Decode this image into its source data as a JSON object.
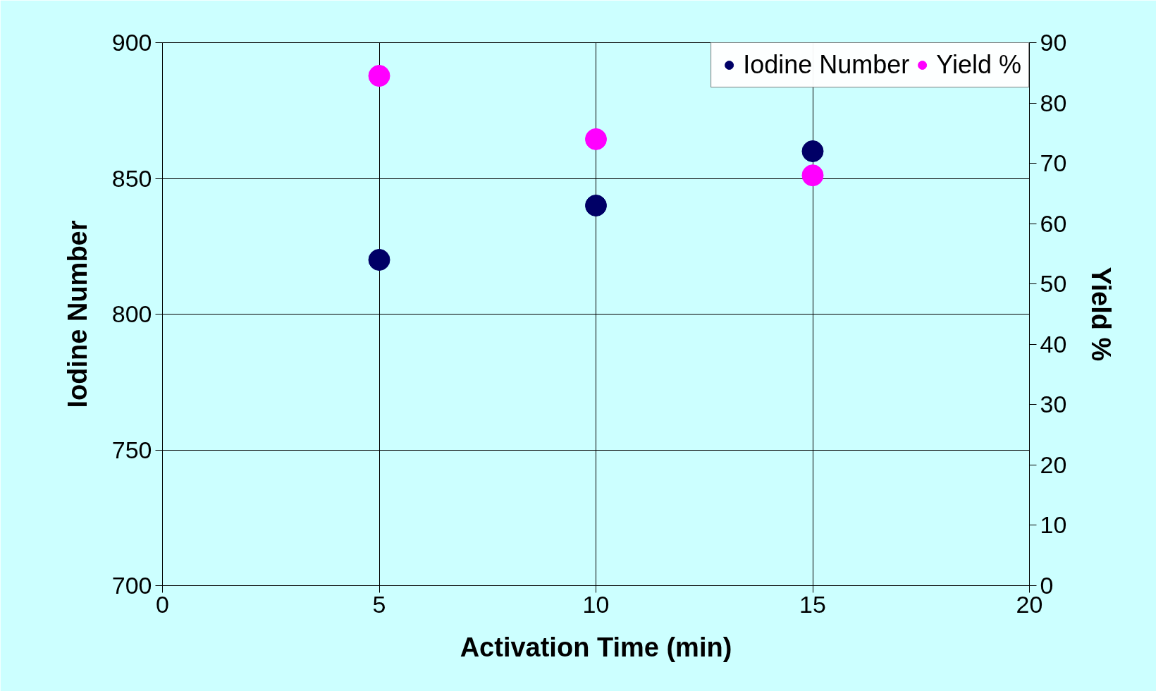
{
  "chart_data": {
    "type": "scatter",
    "xlabel": "Activation Time (min)",
    "ylabel": "Iodine Number",
    "y2label": "Yield %",
    "x": [
      5,
      10,
      15
    ],
    "series": [
      {
        "name": "Iodine Number",
        "color": "#000066",
        "values": [
          820,
          840,
          860
        ]
      },
      {
        "name": "Yield %",
        "color": "#ff00ff",
        "values": [
          84.5,
          74,
          68
        ],
        "axis": "y2"
      }
    ],
    "xlim": [
      0,
      20
    ],
    "xticks": [
      0,
      5,
      10,
      15,
      20
    ],
    "ylim": [
      700,
      900
    ],
    "yticks": [
      700,
      750,
      800,
      850,
      900
    ],
    "y2lim": [
      0,
      90
    ],
    "y2ticks": [
      0,
      10,
      20,
      30,
      40,
      50,
      60,
      70,
      80,
      90
    ],
    "grid": true,
    "legend": "top right",
    "marker": "circle"
  }
}
